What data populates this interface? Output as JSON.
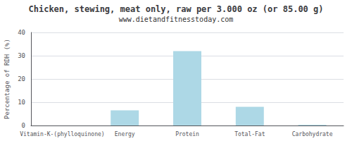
{
  "chart_data": {
    "type": "bar",
    "title": "Chicken, stewing, meat only, raw per 3.000 oz (or 85.00 g)",
    "subtitle": "www.dietandfitnesstoday.com",
    "categories": [
      "Vitamin-K-(phylloquinone)",
      "Energy",
      "Protein",
      "Total-Fat",
      "Carbohydrate"
    ],
    "values": [
      0.0,
      6.5,
      32.0,
      8.0,
      0.3
    ],
    "color": "#add8e6",
    "ylabel": "Percentage of RDH (%)",
    "ylim": [
      0,
      40
    ],
    "yticks": [
      0,
      10,
      20,
      30,
      40
    ],
    "grid": true
  }
}
